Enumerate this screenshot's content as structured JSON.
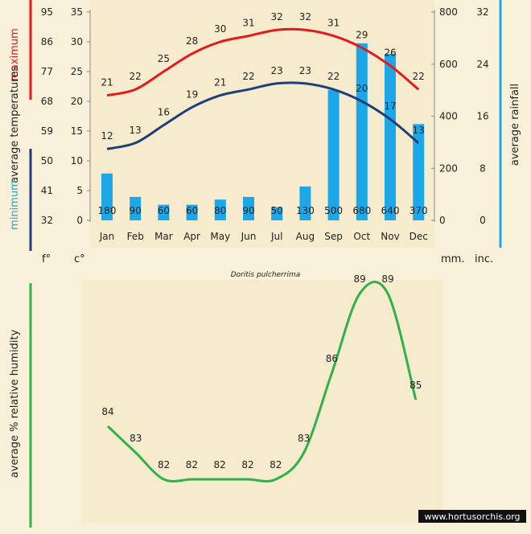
{
  "caption": "Doritis pulcherrima",
  "watermark": "www.hortusorchis.org",
  "colors": {
    "background": "#f8f0d8",
    "panel": "#f6ebcc",
    "max_line": "#e41a1c",
    "min_line": "#1f3f7a",
    "rain_bar": "#1ca7e8",
    "humidity_line": "#2db34a",
    "text": "#222222"
  },
  "chart_data": [
    {
      "type": "bar+line",
      "categories": [
        "Jan",
        "Feb",
        "Mar",
        "Apr",
        "May",
        "Jun",
        "Jul",
        "Aug",
        "Sep",
        "Oct",
        "Nov",
        "Dec"
      ],
      "temperature_axis": {
        "celsius_ticks": [
          "35",
          "30",
          "25",
          "20",
          "15",
          "10",
          "5",
          "0"
        ],
        "fahrenheit_ticks": [
          "95",
          "86",
          "77",
          "68",
          "59",
          "50",
          "41",
          "32"
        ],
        "celsius_range": [
          0,
          35
        ],
        "unit_f": "f°",
        "unit_c": "c°"
      },
      "left_labels": {
        "maximum": "maximum",
        "average_temperatures": "average  temperatures",
        "minimum": "minimum"
      },
      "rain_axis": {
        "mm_ticks": [
          "800",
          "600",
          "400",
          "200",
          "0"
        ],
        "inch_ticks": [
          "32",
          "24",
          "16",
          "8",
          "0"
        ],
        "mm_range": [
          0,
          800
        ],
        "unit_mm": "mm.",
        "unit_in": "inc.",
        "label": "average rainfall"
      },
      "series": [
        {
          "name": "maximum",
          "values": [
            21,
            22,
            25,
            28,
            30,
            31,
            32,
            32,
            31,
            29,
            26,
            22
          ]
        },
        {
          "name": "minimum",
          "values": [
            12,
            13,
            16,
            19,
            21,
            22,
            23,
            23,
            22,
            20,
            17,
            13
          ]
        },
        {
          "name": "average rainfall",
          "values": [
            180,
            90,
            60,
            60,
            80,
            90,
            50,
            130,
            500,
            680,
            640,
            370
          ]
        }
      ]
    },
    {
      "type": "line",
      "categories": [
        "Jan",
        "Feb",
        "Mar",
        "Apr",
        "May",
        "Jun",
        "Jul",
        "Aug",
        "Sep",
        "Oct",
        "Nov",
        "Dec"
      ],
      "ylabel": "average %  relative humidity",
      "series": [
        {
          "name": "average % relative humidity",
          "values": [
            84,
            83,
            82,
            82,
            82,
            82,
            82,
            83,
            86,
            89,
            89,
            85
          ]
        }
      ],
      "ylim": [
        78,
        92
      ]
    }
  ]
}
